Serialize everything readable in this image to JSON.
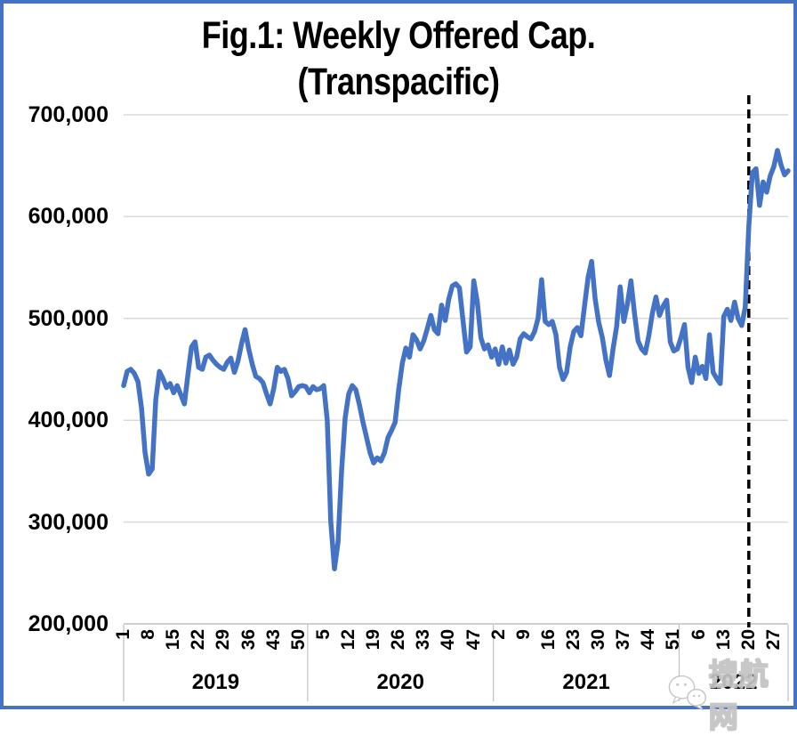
{
  "title": {
    "line1": "Fig.1: Weekly Offered Cap.",
    "line2": "(Transpacific)"
  },
  "watermark": {
    "text": "搜航网"
  },
  "colors": {
    "line": "#4472C4",
    "page_border": "#4472C4",
    "gridline": "#D9D9D9",
    "axis_line": "#BFBFBF",
    "dashed_marker": "#000000"
  },
  "chart_data": {
    "type": "line",
    "title": "Fig.1: Weekly Offered Cap. (Transpacific)",
    "xlabel": "",
    "ylabel": "",
    "ylim": [
      200000,
      700000
    ],
    "grid": "horizontal",
    "legend": "none",
    "y_ticks": [
      {
        "label": "700,000",
        "value": 700000
      },
      {
        "label": "600,000",
        "value": 600000
      },
      {
        "label": "500,000",
        "value": 500000
      },
      {
        "label": "400,000",
        "value": 400000
      },
      {
        "label": "300,000",
        "value": 300000
      },
      {
        "label": "200,000",
        "value": 200000
      }
    ],
    "x_tick_every": 7,
    "x_tick_labels": [
      "1",
      "8",
      "15",
      "22",
      "29",
      "36",
      "43",
      "50",
      "5",
      "12",
      "19",
      "26",
      "33",
      "40",
      "47",
      "2",
      "9",
      "16",
      "23",
      "30",
      "37",
      "44",
      "51",
      "6",
      "13",
      "20",
      "27"
    ],
    "years": [
      {
        "label": "2019",
        "weeks": 52
      },
      {
        "label": "2020",
        "weeks": 52
      },
      {
        "label": "2021",
        "weeks": 52
      },
      {
        "label": "2022",
        "weeks": 31
      }
    ],
    "dashed_vline_index": 175,
    "series": [
      {
        "name": "Weekly offered capacity",
        "values": [
          434000,
          448000,
          450000,
          446000,
          438000,
          412000,
          368000,
          347000,
          352000,
          420000,
          448000,
          441000,
          432000,
          436000,
          427000,
          434000,
          425000,
          416000,
          445000,
          472000,
          477000,
          452000,
          450000,
          462000,
          464000,
          459000,
          455000,
          452000,
          450000,
          457000,
          461000,
          447000,
          458000,
          475000,
          489000,
          470000,
          455000,
          443000,
          441000,
          437000,
          426000,
          416000,
          431000,
          452000,
          448000,
          450000,
          441000,
          424000,
          428000,
          433000,
          434000,
          433000,
          427000,
          433000,
          430000,
          431000,
          434000,
          400000,
          300000,
          254000,
          280000,
          350000,
          402000,
          426000,
          434000,
          430000,
          415000,
          398000,
          383000,
          368000,
          358000,
          363000,
          360000,
          368000,
          383000,
          390000,
          398000,
          430000,
          456000,
          471000,
          462000,
          484000,
          479000,
          470000,
          478000,
          490000,
          503000,
          489000,
          485000,
          513000,
          498000,
          519000,
          532000,
          534000,
          530000,
          498000,
          467000,
          472000,
          537000,
          516000,
          481000,
          470000,
          474000,
          462000,
          470000,
          455000,
          472000,
          456000,
          469000,
          455000,
          462000,
          480000,
          485000,
          482000,
          480000,
          487000,
          500000,
          538000,
          497000,
          494000,
          497000,
          484000,
          452000,
          440000,
          447000,
          472000,
          487000,
          491000,
          483000,
          512000,
          540000,
          556000,
          519000,
          496000,
          481000,
          459000,
          444000,
          470000,
          492000,
          531000,
          497000,
          514000,
          537000,
          505000,
          478000,
          470000,
          466000,
          483000,
          505000,
          521000,
          503000,
          512000,
          518000,
          477000,
          468000,
          470000,
          481000,
          494000,
          452000,
          437000,
          462000,
          446000,
          453000,
          441000,
          484000,
          447000,
          441000,
          436000,
          502000,
          509000,
          498000,
          516000,
          500000,
          493000,
          511000,
          590000,
          643000,
          647000,
          611000,
          634000,
          624000,
          640000,
          649000,
          665000,
          651000,
          641000,
          645000
        ]
      }
    ]
  }
}
